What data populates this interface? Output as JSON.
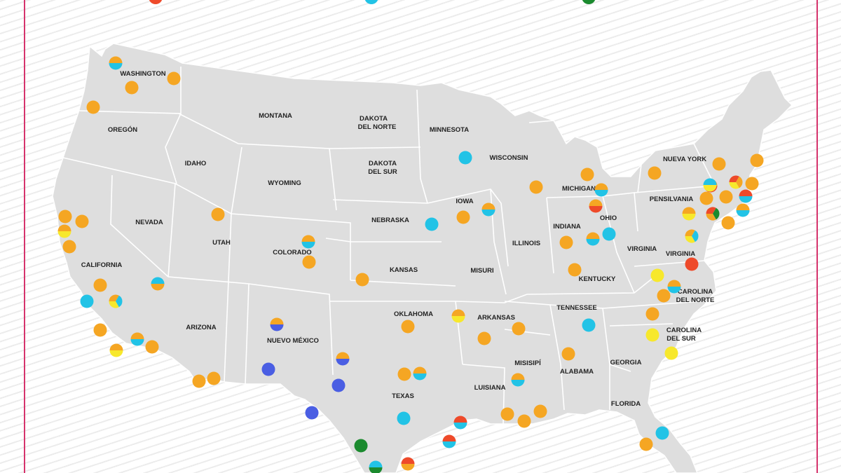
{
  "colors": {
    "land": "#dedede",
    "border": "#ffffff",
    "orange": "#f5a623",
    "cyan": "#22c3e6",
    "yellow": "#f7e82c",
    "red": "#ee4a2a",
    "blue": "#4a5ee3",
    "green": "#1b8a2e",
    "frame": "#d6336c"
  },
  "legend": [
    "red",
    "cyan",
    "green"
  ],
  "states": [
    {
      "label": "WASHINGTON"
    },
    {
      "label": "OREGÓN"
    },
    {
      "label": "MONTANA"
    },
    {
      "label": "DAKOTA"
    },
    {
      "label": "DEL NORTE"
    },
    {
      "label": "MINNESOTA"
    },
    {
      "label": "IDAHO"
    },
    {
      "label": "WYOMING"
    },
    {
      "label": "DAKOTA"
    },
    {
      "label": "DEL SUR"
    },
    {
      "label": "WISCONSIN"
    },
    {
      "label": "NUEVA YORK"
    },
    {
      "label": "MICHIGAN"
    },
    {
      "label": "PENSILVANIA"
    },
    {
      "label": "IOWA"
    },
    {
      "label": "NEVADA"
    },
    {
      "label": "UTAH"
    },
    {
      "label": "COLORADO"
    },
    {
      "label": "NEBRASKA"
    },
    {
      "label": "INDIANA"
    },
    {
      "label": "OHIO"
    },
    {
      "label": "ILLINOIS"
    },
    {
      "label": "VIRGINIA"
    },
    {
      "label": "VIRGINIA"
    },
    {
      "label": "CALIFORNIA"
    },
    {
      "label": "KANSAS"
    },
    {
      "label": "MISURI"
    },
    {
      "label": "KENTUCKY"
    },
    {
      "label": "CAROLINA"
    },
    {
      "label": "DEL NORTE"
    },
    {
      "label": "TENNESSEE"
    },
    {
      "label": "OKLAHOMA"
    },
    {
      "label": "ARKANSAS"
    },
    {
      "label": "ARIZONA"
    },
    {
      "label": "NUEVO MÉXICO"
    },
    {
      "label": "CAROLINA"
    },
    {
      "label": "DEL SUR"
    },
    {
      "label": "MISISIPÍ"
    },
    {
      "label": "ALABAMA"
    },
    {
      "label": "GEORGIA"
    },
    {
      "label": "LUISIANA"
    },
    {
      "label": "TEXAS"
    },
    {
      "label": "FLORIDA"
    }
  ],
  "markers": [
    {
      "colors": [
        "orange",
        "cyan"
      ]
    },
    {
      "colors": [
        "orange"
      ]
    },
    {
      "colors": [
        "orange"
      ]
    },
    {
      "colors": [
        "orange"
      ]
    },
    {
      "colors": [
        "orange"
      ]
    },
    {
      "colors": [
        "orange"
      ]
    },
    {
      "colors": [
        "orange",
        "yellow"
      ]
    },
    {
      "colors": [
        "orange"
      ]
    },
    {
      "colors": [
        "orange"
      ]
    },
    {
      "colors": [
        "cyan"
      ]
    },
    {
      "colors": [
        "orange",
        "cyan",
        "yellow"
      ]
    },
    {
      "colors": [
        "orange"
      ]
    },
    {
      "colors": [
        "orange",
        "yellow"
      ]
    },
    {
      "colors": [
        "orange",
        "cyan"
      ]
    },
    {
      "colors": [
        "orange"
      ]
    },
    {
      "colors": [
        "cyan",
        "orange"
      ]
    },
    {
      "colors": [
        "orange"
      ]
    },
    {
      "colors": [
        "orange"
      ]
    },
    {
      "colors": [
        "orange"
      ]
    },
    {
      "colors": [
        "orange",
        "cyan"
      ]
    },
    {
      "colors": [
        "orange"
      ]
    },
    {
      "colors": [
        "orange"
      ]
    },
    {
      "colors": [
        "orange",
        "blue"
      ]
    },
    {
      "colors": [
        "blue"
      ]
    },
    {
      "colors": [
        "blue"
      ]
    },
    {
      "colors": [
        "orange",
        "blue"
      ]
    },
    {
      "colors": [
        "blue"
      ]
    },
    {
      "colors": [
        "orange"
      ]
    },
    {
      "colors": [
        "orange",
        "cyan"
      ]
    },
    {
      "colors": [
        "orange"
      ]
    },
    {
      "colors": [
        "orange",
        "yellow"
      ]
    },
    {
      "colors": [
        "cyan"
      ]
    },
    {
      "colors": [
        "green"
      ]
    },
    {
      "colors": [
        "cyan",
        "green"
      ]
    },
    {
      "colors": [
        "red",
        "cyan"
      ]
    },
    {
      "colors": [
        "red",
        "cyan"
      ]
    },
    {
      "colors": [
        "red",
        "orange"
      ]
    },
    {
      "colors": [
        "cyan"
      ]
    },
    {
      "colors": [
        "orange"
      ]
    },
    {
      "colors": [
        "orange",
        "cyan"
      ]
    },
    {
      "colors": [
        "orange"
      ]
    },
    {
      "colors": [
        "orange"
      ]
    },
    {
      "colors": [
        "orange",
        "cyan"
      ]
    },
    {
      "colors": [
        "orange"
      ]
    },
    {
      "colors": [
        "orange"
      ]
    },
    {
      "colors": [
        "orange"
      ]
    },
    {
      "colors": [
        "orange",
        "red"
      ]
    },
    {
      "colors": [
        "orange",
        "cyan"
      ]
    },
    {
      "colors": [
        "cyan"
      ]
    },
    {
      "colors": [
        "orange"
      ]
    },
    {
      "colors": [
        "orange"
      ]
    },
    {
      "colors": [
        "cyan"
      ]
    },
    {
      "colors": [
        "orange"
      ]
    },
    {
      "colors": [
        "orange"
      ]
    },
    {
      "colors": [
        "orange"
      ]
    },
    {
      "colors": [
        "orange",
        "cyan"
      ]
    },
    {
      "colors": [
        "orange"
      ]
    },
    {
      "colors": [
        "orange",
        "red"
      ]
    },
    {
      "colors": [
        "orange"
      ]
    },
    {
      "colors": [
        "orange"
      ]
    },
    {
      "colors": [
        "red",
        "green",
        "orange"
      ]
    },
    {
      "colors": [
        "orange"
      ]
    },
    {
      "colors": [
        "orange",
        "cyan",
        "yellow"
      ]
    },
    {
      "colors": [
        "red"
      ]
    },
    {
      "colors": [
        "yellow"
      ]
    },
    {
      "colors": [
        "orange",
        "cyan"
      ]
    },
    {
      "colors": [
        "orange"
      ]
    },
    {
      "colors": [
        "orange"
      ]
    },
    {
      "colors": [
        "yellow"
      ]
    },
    {
      "colors": [
        "yellow"
      ]
    },
    {
      "colors": [
        "cyan",
        "yellow"
      ]
    },
    {
      "colors": [
        "cyan"
      ]
    },
    {
      "colors": [
        "orange"
      ]
    },
    {
      "colors": [
        "orange"
      ]
    },
    {
      "colors": [
        "red",
        "orange",
        "yellow"
      ]
    },
    {
      "colors": [
        "red",
        "cyan"
      ]
    },
    {
      "colors": [
        "orange"
      ]
    },
    {
      "colors": [
        "orange",
        "cyan"
      ]
    },
    {
      "colors": [
        "orange",
        "yellow"
      ]
    },
    {
      "colors": [
        "cyan"
      ]
    },
    {
      "colors": [
        "orange"
      ]
    }
  ]
}
